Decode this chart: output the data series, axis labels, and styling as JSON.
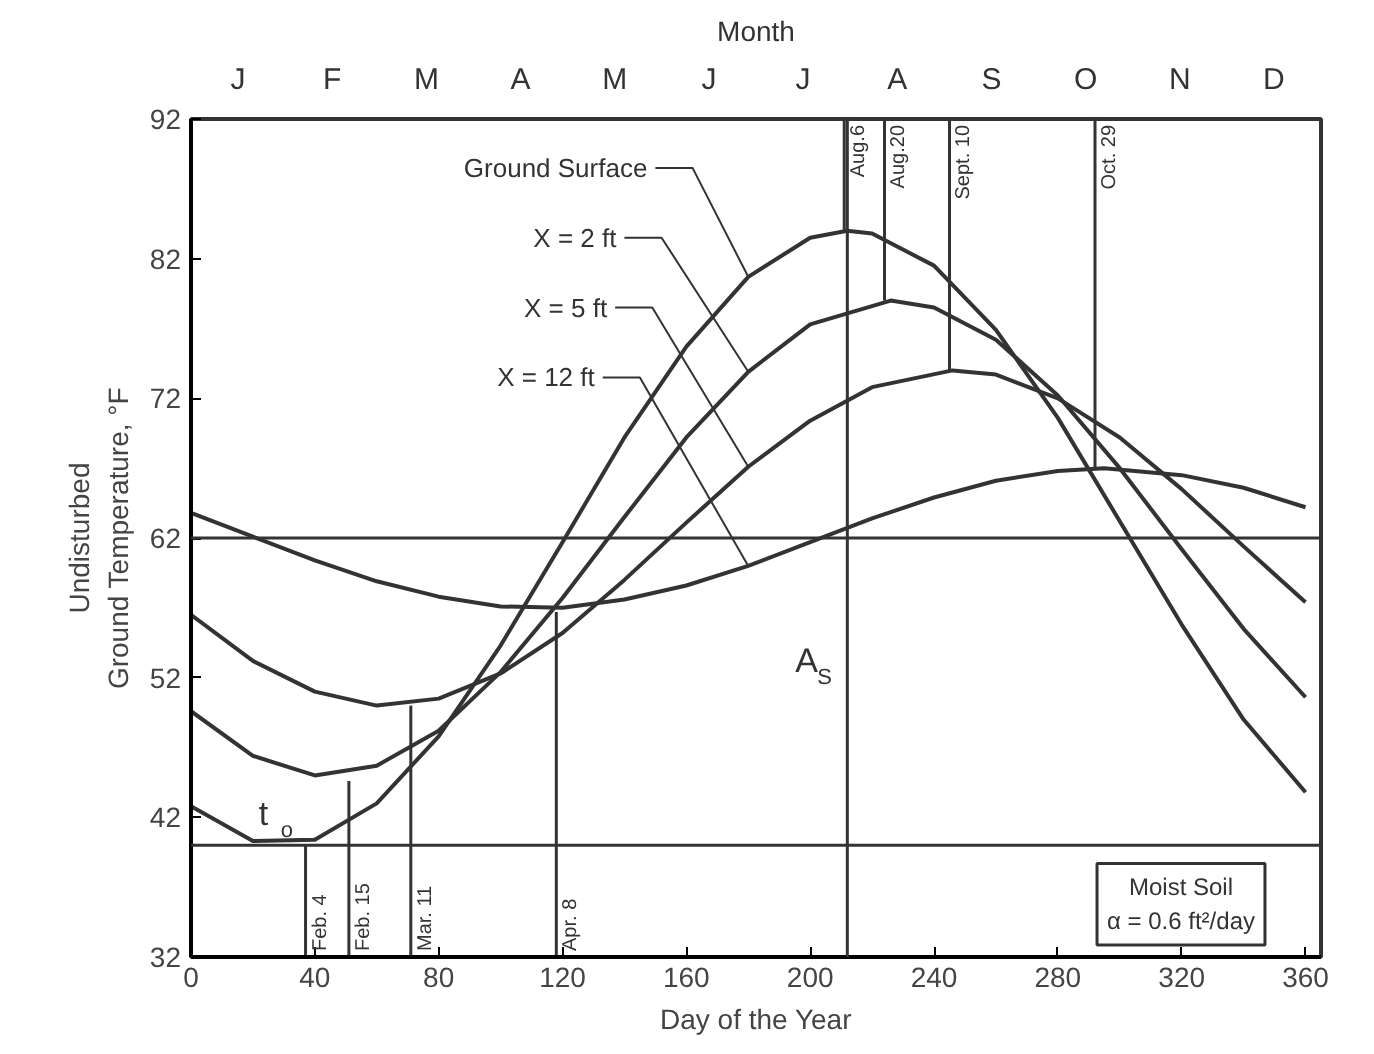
{
  "chart_data": {
    "type": "line",
    "xlabel": "Day of the Year",
    "ylabel": "Undisturbed\nGround Temperature, °F",
    "title": "Month",
    "xlim": [
      0,
      365
    ],
    "xticks": [
      0,
      40,
      80,
      120,
      160,
      200,
      240,
      280,
      320,
      360
    ],
    "ylim": [
      32,
      92
    ],
    "yticks": [
      32,
      42,
      52,
      62,
      72,
      82,
      92
    ],
    "grid": false,
    "marker": "none",
    "line_style": "solid",
    "series": [
      {
        "name": "Ground Surface",
        "color": "#333333",
        "x": [
          0,
          20,
          40,
          60,
          80,
          100,
          120,
          140,
          160,
          180,
          200,
          212,
          220,
          240,
          260,
          280,
          300,
          320,
          340,
          360
        ],
        "values": [
          42.8,
          40.3,
          40.4,
          43.0,
          47.8,
          54.3,
          61.7,
          69.2,
          75.7,
          80.7,
          83.5,
          84,
          83.8,
          81.5,
          76.9,
          70.6,
          63.2,
          55.8,
          49.0,
          43.8
        ]
      },
      {
        "name": "X = 2 ft",
        "color": "#333333",
        "x": [
          0,
          20,
          40,
          60,
          80,
          100,
          120,
          140,
          160,
          180,
          200,
          226,
          240,
          260,
          280,
          300,
          320,
          340,
          360
        ],
        "values": [
          49.6,
          46.4,
          45.0,
          45.7,
          48.2,
          52.4,
          57.7,
          63.5,
          69.2,
          73.9,
          77.3,
          79,
          78.5,
          76.2,
          72.2,
          67.0,
          61.2,
          55.5,
          50.6
        ]
      },
      {
        "name": "X = 5 ft",
        "color": "#333333",
        "x": [
          0,
          20,
          40,
          60,
          80,
          100,
          120,
          140,
          160,
          180,
          200,
          220,
          246,
          260,
          280,
          300,
          320,
          340,
          360
        ],
        "values": [
          56.5,
          53.2,
          51.0,
          50.0,
          50.5,
          52.3,
          55.2,
          59.0,
          63.1,
          67.1,
          70.4,
          72.8,
          74,
          73.7,
          72.0,
          69.2,
          65.5,
          61.4,
          57.4
        ]
      },
      {
        "name": "X = 12 ft",
        "color": "#333333",
        "x": [
          0,
          20,
          40,
          60,
          80,
          100,
          120,
          140,
          160,
          180,
          200,
          220,
          240,
          260,
          280,
          295,
          320,
          340,
          360
        ],
        "values": [
          63.8,
          62.1,
          60.4,
          58.9,
          57.8,
          57.1,
          57.0,
          57.6,
          58.6,
          60.0,
          61.7,
          63.4,
          64.9,
          66.1,
          66.8,
          67,
          66.5,
          65.6,
          64.2
        ]
      }
    ],
    "ref_lines": [
      {
        "axis": "y",
        "value": 62
      },
      {
        "axis": "y",
        "value": 40,
        "label": "t$_{o}$"
      },
      {
        "axis": "x",
        "value": 212,
        "label": "A$_{S}$"
      }
    ],
    "annotations": [
      {
        "text": "Feb. 4",
        "x": 37,
        "y": 40
      },
      {
        "text": "Feb. 15",
        "x": 51,
        "y": 44.6
      },
      {
        "text": "Mar. 11",
        "x": 71,
        "y": 50
      },
      {
        "text": "Apr. 8",
        "x": 118,
        "y": 56.7
      },
      {
        "text": "Aug.6",
        "x": 211,
        "y": 84
      },
      {
        "text": "Aug.20",
        "x": 224,
        "y": 79
      },
      {
        "text": "Sept. 10",
        "x": 245,
        "y": 74
      },
      {
        "text": "Oct. 29",
        "x": 292,
        "y": 67
      },
      "Moist Soil\nα = 0.6 ft²/day",
      "J",
      "F",
      "M",
      "A",
      "M",
      "J",
      "J",
      "A",
      "S",
      "O",
      "N",
      "D"
    ]
  }
}
